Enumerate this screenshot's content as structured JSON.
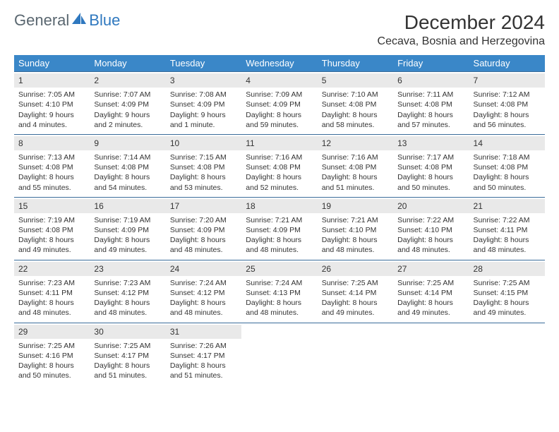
{
  "logo": {
    "text1": "General",
    "text2": "Blue"
  },
  "title": "December 2024",
  "location": "Cecava, Bosnia and Herzegovina",
  "colors": {
    "header_bg": "#3a87c8",
    "header_text": "#ffffff",
    "row_border": "#3a6c9a",
    "daynum_bg": "#e9e9e9",
    "logo_gray": "#5a6770",
    "logo_blue": "#2f78bf",
    "body_text": "#333333",
    "page_bg": "#ffffff"
  },
  "day_headers": [
    "Sunday",
    "Monday",
    "Tuesday",
    "Wednesday",
    "Thursday",
    "Friday",
    "Saturday"
  ],
  "weeks": [
    [
      {
        "d": "1",
        "sr": "Sunrise: 7:05 AM",
        "ss": "Sunset: 4:10 PM",
        "dl": "Daylight: 9 hours and 4 minutes."
      },
      {
        "d": "2",
        "sr": "Sunrise: 7:07 AM",
        "ss": "Sunset: 4:09 PM",
        "dl": "Daylight: 9 hours and 2 minutes."
      },
      {
        "d": "3",
        "sr": "Sunrise: 7:08 AM",
        "ss": "Sunset: 4:09 PM",
        "dl": "Daylight: 9 hours and 1 minute."
      },
      {
        "d": "4",
        "sr": "Sunrise: 7:09 AM",
        "ss": "Sunset: 4:09 PM",
        "dl": "Daylight: 8 hours and 59 minutes."
      },
      {
        "d": "5",
        "sr": "Sunrise: 7:10 AM",
        "ss": "Sunset: 4:08 PM",
        "dl": "Daylight: 8 hours and 58 minutes."
      },
      {
        "d": "6",
        "sr": "Sunrise: 7:11 AM",
        "ss": "Sunset: 4:08 PM",
        "dl": "Daylight: 8 hours and 57 minutes."
      },
      {
        "d": "7",
        "sr": "Sunrise: 7:12 AM",
        "ss": "Sunset: 4:08 PM",
        "dl": "Daylight: 8 hours and 56 minutes."
      }
    ],
    [
      {
        "d": "8",
        "sr": "Sunrise: 7:13 AM",
        "ss": "Sunset: 4:08 PM",
        "dl": "Daylight: 8 hours and 55 minutes."
      },
      {
        "d": "9",
        "sr": "Sunrise: 7:14 AM",
        "ss": "Sunset: 4:08 PM",
        "dl": "Daylight: 8 hours and 54 minutes."
      },
      {
        "d": "10",
        "sr": "Sunrise: 7:15 AM",
        "ss": "Sunset: 4:08 PM",
        "dl": "Daylight: 8 hours and 53 minutes."
      },
      {
        "d": "11",
        "sr": "Sunrise: 7:16 AM",
        "ss": "Sunset: 4:08 PM",
        "dl": "Daylight: 8 hours and 52 minutes."
      },
      {
        "d": "12",
        "sr": "Sunrise: 7:16 AM",
        "ss": "Sunset: 4:08 PM",
        "dl": "Daylight: 8 hours and 51 minutes."
      },
      {
        "d": "13",
        "sr": "Sunrise: 7:17 AM",
        "ss": "Sunset: 4:08 PM",
        "dl": "Daylight: 8 hours and 50 minutes."
      },
      {
        "d": "14",
        "sr": "Sunrise: 7:18 AM",
        "ss": "Sunset: 4:08 PM",
        "dl": "Daylight: 8 hours and 50 minutes."
      }
    ],
    [
      {
        "d": "15",
        "sr": "Sunrise: 7:19 AM",
        "ss": "Sunset: 4:08 PM",
        "dl": "Daylight: 8 hours and 49 minutes."
      },
      {
        "d": "16",
        "sr": "Sunrise: 7:19 AM",
        "ss": "Sunset: 4:09 PM",
        "dl": "Daylight: 8 hours and 49 minutes."
      },
      {
        "d": "17",
        "sr": "Sunrise: 7:20 AM",
        "ss": "Sunset: 4:09 PM",
        "dl": "Daylight: 8 hours and 48 minutes."
      },
      {
        "d": "18",
        "sr": "Sunrise: 7:21 AM",
        "ss": "Sunset: 4:09 PM",
        "dl": "Daylight: 8 hours and 48 minutes."
      },
      {
        "d": "19",
        "sr": "Sunrise: 7:21 AM",
        "ss": "Sunset: 4:10 PM",
        "dl": "Daylight: 8 hours and 48 minutes."
      },
      {
        "d": "20",
        "sr": "Sunrise: 7:22 AM",
        "ss": "Sunset: 4:10 PM",
        "dl": "Daylight: 8 hours and 48 minutes."
      },
      {
        "d": "21",
        "sr": "Sunrise: 7:22 AM",
        "ss": "Sunset: 4:11 PM",
        "dl": "Daylight: 8 hours and 48 minutes."
      }
    ],
    [
      {
        "d": "22",
        "sr": "Sunrise: 7:23 AM",
        "ss": "Sunset: 4:11 PM",
        "dl": "Daylight: 8 hours and 48 minutes."
      },
      {
        "d": "23",
        "sr": "Sunrise: 7:23 AM",
        "ss": "Sunset: 4:12 PM",
        "dl": "Daylight: 8 hours and 48 minutes."
      },
      {
        "d": "24",
        "sr": "Sunrise: 7:24 AM",
        "ss": "Sunset: 4:12 PM",
        "dl": "Daylight: 8 hours and 48 minutes."
      },
      {
        "d": "25",
        "sr": "Sunrise: 7:24 AM",
        "ss": "Sunset: 4:13 PM",
        "dl": "Daylight: 8 hours and 48 minutes."
      },
      {
        "d": "26",
        "sr": "Sunrise: 7:25 AM",
        "ss": "Sunset: 4:14 PM",
        "dl": "Daylight: 8 hours and 49 minutes."
      },
      {
        "d": "27",
        "sr": "Sunrise: 7:25 AM",
        "ss": "Sunset: 4:14 PM",
        "dl": "Daylight: 8 hours and 49 minutes."
      },
      {
        "d": "28",
        "sr": "Sunrise: 7:25 AM",
        "ss": "Sunset: 4:15 PM",
        "dl": "Daylight: 8 hours and 49 minutes."
      }
    ],
    [
      {
        "d": "29",
        "sr": "Sunrise: 7:25 AM",
        "ss": "Sunset: 4:16 PM",
        "dl": "Daylight: 8 hours and 50 minutes."
      },
      {
        "d": "30",
        "sr": "Sunrise: 7:25 AM",
        "ss": "Sunset: 4:17 PM",
        "dl": "Daylight: 8 hours and 51 minutes."
      },
      {
        "d": "31",
        "sr": "Sunrise: 7:26 AM",
        "ss": "Sunset: 4:17 PM",
        "dl": "Daylight: 8 hours and 51 minutes."
      },
      null,
      null,
      null,
      null
    ]
  ]
}
